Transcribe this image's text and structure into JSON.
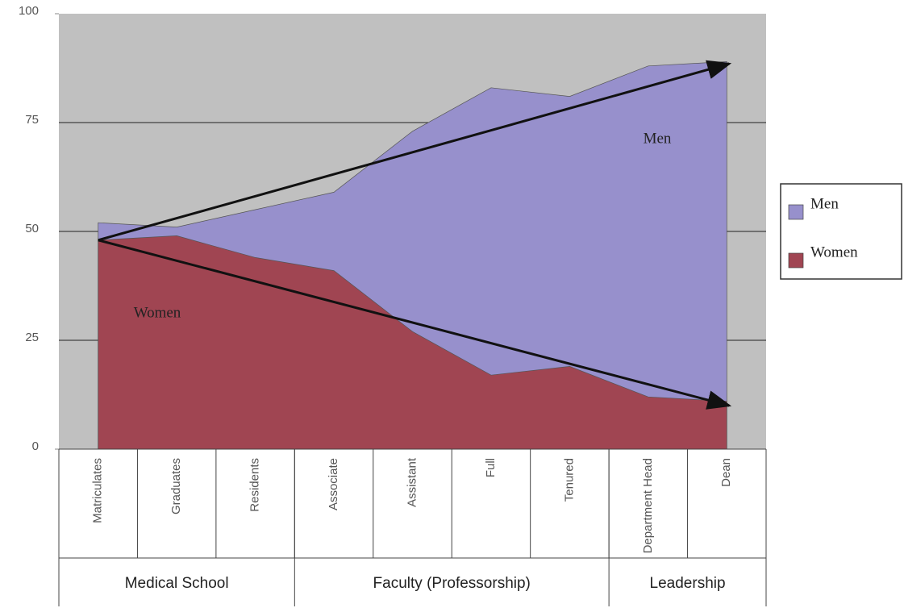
{
  "chart_data": {
    "type": "area",
    "categories": [
      "Matriculates",
      "Graduates",
      "Residents",
      "Associate",
      "Assistant",
      "Full",
      "Tenured",
      "Department Head",
      "Dean"
    ],
    "series": [
      {
        "name": "Men",
        "color": "#9790cc",
        "values": [
          52,
          51,
          55,
          59,
          73,
          83,
          81,
          88,
          89
        ]
      },
      {
        "name": "Women",
        "color": "#a04552",
        "values": [
          48,
          49,
          44,
          41,
          27,
          17,
          19,
          12,
          11
        ]
      }
    ],
    "groups": [
      {
        "label": "Medical School",
        "span": 3
      },
      {
        "label": "Faculty (Professorship)",
        "span": 4
      },
      {
        "label": "Leadership",
        "span": 2
      }
    ],
    "annotations": [
      "Men",
      "Women"
    ],
    "ylim": [
      0,
      100
    ],
    "yticks": [
      0,
      25,
      50,
      75,
      100
    ],
    "grid": true,
    "legend": "right"
  }
}
